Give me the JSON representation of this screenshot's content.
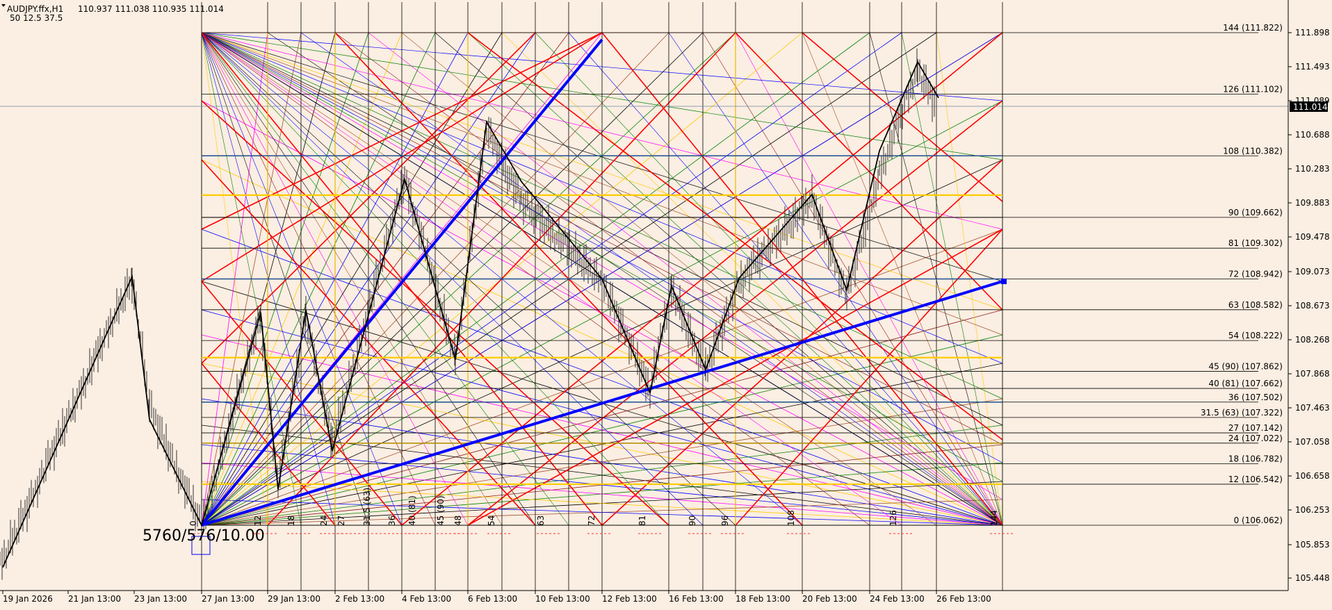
{
  "header": {
    "symbol": "AUDJPY.ffx,H1",
    "ohlc": "110.937 111.038 110.935 111.014",
    "params": "50   12.5  37.5"
  },
  "colors": {
    "background": "#fbeee2",
    "price_tag_bg": "#000000",
    "gann_blue": "#0000ff",
    "gann_red": "#ff0000",
    "gann_gold": "#ffcc00"
  },
  "current_price": "111.014",
  "origin_label": "5760/576/10.00",
  "chart_data": {
    "type": "line",
    "title": "",
    "xlabel": "",
    "ylabel": "",
    "ylim": [
      105.3,
      112.16
    ],
    "y_ticks": [
      "111.898",
      "111.493",
      "111.089",
      "110.688",
      "110.283",
      "109.883",
      "109.478",
      "109.073",
      "108.673",
      "108.268",
      "107.868",
      "107.463",
      "107.058",
      "106.658",
      "106.253",
      "105.853",
      "105.448"
    ],
    "x_ticks": [
      "19 Jan 2026",
      "21 Jan 13:00",
      "23 Jan 13:00",
      "27 Jan 13:00",
      "29 Jan 13:00",
      "2 Feb 13:00",
      "4 Feb 13:00",
      "6 Feb 13:00",
      "10 Feb 13:00",
      "12 Feb 13:00",
      "16 Feb 13:00",
      "18 Feb 13:00",
      "20 Feb 13:00",
      "24 Feb 13:00",
      "26 Feb 13:00"
    ],
    "levels": [
      {
        "label": "144 (111.822)",
        "value": 111.822
      },
      {
        "label": "126 (111.102)",
        "value": 111.102
      },
      {
        "label": "108 (110.382)",
        "value": 110.382
      },
      {
        "label": "90 (109.662)",
        "value": 109.662
      },
      {
        "label": "81 (109.302)",
        "value": 109.302
      },
      {
        "label": "72 (108.942)",
        "value": 108.942
      },
      {
        "label": "63 (108.582)",
        "value": 108.582
      },
      {
        "label": "54 (108.222)",
        "value": 108.222
      },
      {
        "label": "45 (90) (107.862)",
        "value": 107.862
      },
      {
        "label": "40 (81) (107.662)",
        "value": 107.662
      },
      {
        "label": "36 (107.502)",
        "value": 107.502
      },
      {
        "label": "31.5 (63) (107.322)",
        "value": 107.322
      },
      {
        "label": "27 (107.142)",
        "value": 107.142
      },
      {
        "label": "24 (107.022)",
        "value": 107.022
      },
      {
        "label": "18 (106.782)",
        "value": 106.782
      },
      {
        "label": "12 (106.542)",
        "value": 106.542
      },
      {
        "label": "0 (106.062)",
        "value": 106.062
      }
    ],
    "time_marks": [
      "0",
      "12",
      "18",
      "24",
      "27",
      "31.5 (63)",
      "36",
      "40 (81)",
      "45 (90)",
      "48",
      "54",
      "63",
      "72",
      "81",
      "90",
      "96",
      "108",
      "126",
      "144"
    ],
    "zigzag": [
      {
        "x": "19 Jan 2026",
        "y": 105.57
      },
      {
        "x": "23 Jan 00:00",
        "y": 108.97
      },
      {
        "x": "24 Jan 00:00",
        "y": 107.3
      },
      {
        "x": "27 Jan 00:00",
        "y": 106.06
      },
      {
        "x": "28 Jan 18:00",
        "y": 108.55
      },
      {
        "x": "29 Jan 18:00",
        "y": 106.48
      },
      {
        "x": "31 Jan 00:00",
        "y": 108.58
      },
      {
        "x": "2 Feb 00:00",
        "y": 106.93
      },
      {
        "x": "4 Feb 18:00",
        "y": 110.11
      },
      {
        "x": "5 Feb 18:00",
        "y": 108.0
      },
      {
        "x": "6 Feb 13:00",
        "y": 110.78
      },
      {
        "x": "7 Feb 00:00",
        "y": 110.08
      },
      {
        "x": "12 Feb 00:00",
        "y": 108.94
      },
      {
        "x": "13 Feb 12:00",
        "y": 107.61
      },
      {
        "x": "15 Feb 00:00",
        "y": 108.86
      },
      {
        "x": "16 Feb 13:00",
        "y": 107.88
      },
      {
        "x": "17 Feb 12:00",
        "y": 108.95
      },
      {
        "x": "20 Feb 00:00",
        "y": 109.93
      },
      {
        "x": "22 Feb 00:00",
        "y": 108.81
      },
      {
        "x": "24 Feb 00:00",
        "y": 110.44
      },
      {
        "x": "25 Feb 00:00",
        "y": 111.48
      },
      {
        "x": "26 Feb 00:00",
        "y": 111.06
      }
    ]
  }
}
